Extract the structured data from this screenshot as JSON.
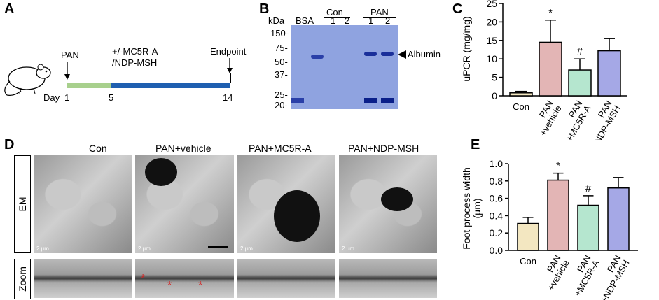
{
  "panels": {
    "A": "A",
    "B": "B",
    "C": "C",
    "D": "D",
    "E": "E"
  },
  "panelA": {
    "pan": "PAN",
    "treatment_line1": "+/-MC5R-A",
    "treatment_line2": "/NDP-MSH",
    "endpoint": "Endpoint",
    "day_label": "Day",
    "day1": "1",
    "day5": "5",
    "day14": "14",
    "colors": {
      "early": "#a8d08d",
      "late": "#1f5fb0"
    }
  },
  "panelB": {
    "unit": "kDa",
    "lanes": [
      "BSA",
      "1",
      "2",
      "1",
      "2"
    ],
    "group_con": "Con",
    "group_pan": "PAN",
    "markers": [
      "150-",
      "75-",
      "50-",
      "37-",
      "25-",
      "20-"
    ],
    "albumin": "Albumin"
  },
  "chart_data": [
    {
      "type": "bar",
      "panel": "C",
      "categories": [
        "Con",
        "PAN +vehicle",
        "PAN +MC5R-A",
        "PAN +NDP-MSH"
      ],
      "values": [
        0.8,
        14.5,
        7.0,
        12.2
      ],
      "errors": [
        0.4,
        6.0,
        3.0,
        3.3
      ],
      "annotations": [
        "",
        "*",
        "#",
        ""
      ],
      "colors": [
        "#f3e7c1",
        "#e3b5b5",
        "#b5e6cf",
        "#a5a8e6"
      ],
      "ylabel": "uPCR (mg/mg)",
      "ylim": [
        0,
        25
      ],
      "yticks": [
        "0",
        "5",
        "10",
        "15",
        "20",
        "25"
      ]
    },
    {
      "type": "bar",
      "panel": "E",
      "categories": [
        "Con",
        "PAN +vehicle",
        "PAN +MC5R-A",
        "PAN +NDP-MSH"
      ],
      "values": [
        0.31,
        0.81,
        0.52,
        0.72
      ],
      "errors": [
        0.07,
        0.08,
        0.11,
        0.12
      ],
      "annotations": [
        "",
        "*",
        "#",
        ""
      ],
      "colors": [
        "#f3e7c1",
        "#e3b5b5",
        "#b5e6cf",
        "#a5a8e6"
      ],
      "ylabel": "Foot process width (µm)",
      "ylim": [
        0,
        1.0
      ],
      "yticks": [
        "0.0",
        "0.2",
        "0.4",
        "0.6",
        "0.8",
        "1.0"
      ]
    }
  ],
  "panelD": {
    "groups": [
      "Con",
      "PAN+vehicle",
      "PAN+MC5R-A",
      "PAN+NDP-MSH"
    ],
    "row_em": "EM",
    "row_zoom": "Zoom",
    "scale": "2 µm"
  }
}
